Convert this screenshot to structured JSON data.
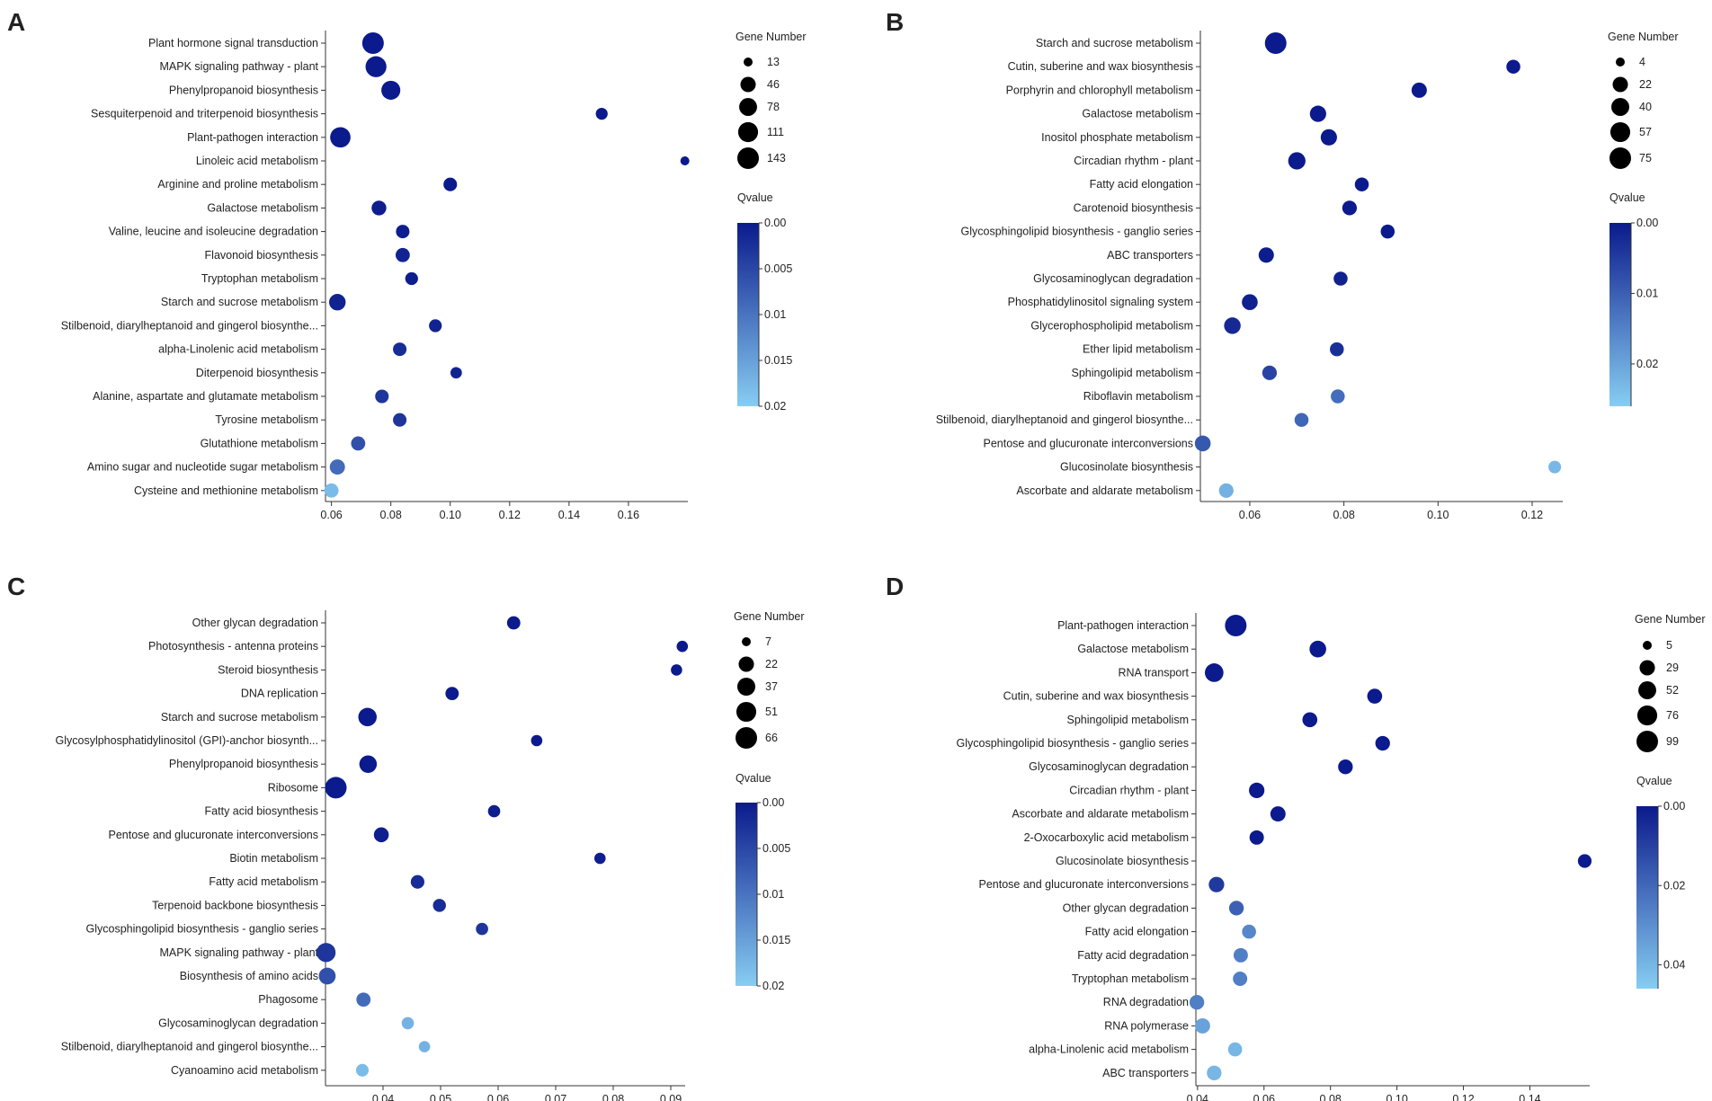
{
  "chart_data": [
    {
      "type": "scatter",
      "panel_label": "A",
      "categories": [
        "Plant hormone signal transduction",
        "MAPK signaling pathway - plant",
        "Phenylpropanoid biosynthesis",
        "Sesquiterpenoid and triterpenoid biosynthesis",
        "Plant-pathogen interaction",
        "Linoleic acid metabolism",
        "Arginine and proline metabolism",
        "Galactose metabolism",
        "Valine, leucine and isoleucine degradation",
        "Flavonoid biosynthesis",
        "Tryptophan metabolism",
        "Starch and sucrose metabolism",
        "Stilbenoid, diarylheptanoid and gingerol biosynthe...",
        "alpha-Linolenic acid metabolism",
        "Diterpenoid biosynthesis",
        "Alanine, aspartate and glutamate metabolism",
        "Tyrosine metabolism",
        "Glutathione metabolism",
        "Amino sugar and nucleotide sugar metabolism",
        "Cysteine and methionine metabolism"
      ],
      "x": [
        0.074,
        0.075,
        0.08,
        0.151,
        0.063,
        0.179,
        0.1,
        0.076,
        0.084,
        0.084,
        0.087,
        0.062,
        0.095,
        0.083,
        0.102,
        0.077,
        0.083,
        0.069,
        0.062,
        0.06
      ],
      "gene_number": [
        143,
        130,
        95,
        20,
        120,
        13,
        30,
        40,
        30,
        35,
        25,
        60,
        25,
        30,
        18,
        30,
        30,
        35,
        45,
        35
      ],
      "qvalue": [
        0.0,
        0.0,
        0.0,
        0.0,
        0.0,
        0.0,
        0.0,
        0.0005,
        0.0005,
        0.001,
        0.0005,
        0.001,
        0.001,
        0.002,
        0.001,
        0.003,
        0.003,
        0.006,
        0.009,
        0.018
      ],
      "xlim": [
        0.058,
        0.18
      ],
      "xticks": [
        0.06,
        0.08,
        0.1,
        0.12,
        0.14,
        0.16
      ],
      "xtick_labels": [
        "0.06",
        "0.08",
        "0.10",
        "0.12",
        "0.14",
        "0.16"
      ],
      "size_legend_title": "Gene Number",
      "size_legend_values": [
        13,
        46,
        78,
        111,
        143
      ],
      "size_legend_labels": [
        "13",
        "46",
        "78",
        "111",
        "143"
      ],
      "color_legend_title": "Qvalue",
      "color_range": [
        0,
        0.02
      ],
      "color_tick_values": [
        0,
        0.005,
        0.01,
        0.015,
        0.02
      ],
      "color_tick_labels": [
        "0.00",
        "0.005",
        "0.01",
        "0.015",
        "0.02"
      ]
    },
    {
      "type": "scatter",
      "panel_label": "B",
      "categories": [
        "Starch and sucrose metabolism",
        "Cutin, suberine and wax biosynthesis",
        "Porphyrin and chlorophyll metabolism",
        "Galactose metabolism",
        "Inositol phosphate metabolism",
        "Circadian rhythm - plant",
        "Fatty acid elongation",
        "Carotenoid biosynthesis",
        "Glycosphingolipid biosynthesis - ganglio series",
        "ABC transporters",
        "Glycosaminoglycan degradation",
        "Phosphatidylinositol signaling system",
        "Glycerophospholipid metabolism",
        "Ether lipid metabolism",
        "Sphingolipid metabolism",
        "Riboflavin metabolism",
        "Stilbenoid, diarylheptanoid and gingerol biosynthe...",
        "Pentose and glucuronate interconversions",
        "Glucosinolate biosynthesis",
        "Ascorbate and aldarate metabolism"
      ],
      "x": [
        0.0655,
        0.116,
        0.096,
        0.0745,
        0.0768,
        0.07,
        0.0838,
        0.0812,
        0.0893,
        0.0635,
        0.0793,
        0.06,
        0.0563,
        0.0785,
        0.0642,
        0.0787,
        0.071,
        0.05,
        0.1248,
        0.055
      ],
      "gene_number": [
        75,
        15,
        22,
        28,
        28,
        35,
        15,
        18,
        15,
        22,
        15,
        25,
        30,
        15,
        18,
        15,
        15,
        25,
        10,
        18
      ],
      "qvalue": [
        0.0,
        0.0,
        0.0,
        0.0,
        0.0,
        0.0,
        0.0,
        0.0,
        0.0,
        0.0005,
        0.001,
        0.0008,
        0.002,
        0.003,
        0.006,
        0.012,
        0.011,
        0.009,
        0.023,
        0.022
      ],
      "xlim": [
        0.0495,
        0.1265
      ],
      "xticks": [
        0.06,
        0.08,
        0.1,
        0.12
      ],
      "xtick_labels": [
        "0.06",
        "0.08",
        "0.10",
        "0.12"
      ],
      "size_legend_title": "Gene Number",
      "size_legend_values": [
        4,
        22,
        40,
        57,
        75
      ],
      "size_legend_labels": [
        "4",
        "22",
        "40",
        "57",
        "75"
      ],
      "color_legend_title": "Qvalue",
      "color_range": [
        0,
        0.026
      ],
      "color_tick_values": [
        0,
        0.01,
        0.02
      ],
      "color_tick_labels": [
        "0.00",
        "0.01",
        "0.02"
      ]
    },
    {
      "type": "scatter",
      "panel_label": "C",
      "categories": [
        "Other glycan degradation",
        "Photosynthesis - antenna proteins",
        "Steroid biosynthesis",
        "DNA replication",
        "Starch and sucrose metabolism",
        "Glycosylphosphatidylinositol (GPI)-anchor biosynth...",
        "Phenylpropanoid biosynthesis",
        "Ribosome",
        "Fatty acid biosynthesis",
        "Pentose and glucuronate interconversions",
        "Biotin metabolism",
        "Fatty acid metabolism",
        "Terpenoid backbone biosynthesis",
        "Glycosphingolipid biosynthesis - ganglio series",
        "MAPK signaling pathway - plant",
        "Biosynthesis of amino acids",
        "Phagosome",
        "Glycosaminoglycan degradation",
        "Stilbenoid, diarylheptanoid and gingerol biosynthe...",
        "Cyanoamino acid metabolism"
      ],
      "x": [
        0.0627,
        0.092,
        0.091,
        0.052,
        0.0373,
        0.0667,
        0.0374,
        0.0318,
        0.0593,
        0.0397,
        0.0777,
        0.046,
        0.0498,
        0.0572,
        0.0301,
        0.0303,
        0.0366,
        0.0443,
        0.0472,
        0.0364
      ],
      "gene_number": [
        14,
        9,
        9,
        14,
        40,
        9,
        34,
        66,
        11,
        20,
        9,
        15,
        13,
        11,
        45,
        30,
        17,
        11,
        9,
        12
      ],
      "qvalue": [
        0.0,
        0.0,
        0.0,
        0.0,
        0.0,
        0.0,
        0.0,
        0.0,
        0.0005,
        0.0005,
        0.0005,
        0.002,
        0.002,
        0.003,
        0.003,
        0.006,
        0.009,
        0.017,
        0.017,
        0.018
      ],
      "xlim": [
        0.03,
        0.0925
      ],
      "xticks": [
        0.04,
        0.05,
        0.06,
        0.07,
        0.08,
        0.09
      ],
      "xtick_labels": [
        "0.04",
        "0.05",
        "0.06",
        "0.07",
        "0.08",
        "0.09"
      ],
      "size_legend_title": "Gene Number",
      "size_legend_values": [
        7,
        22,
        37,
        51,
        66
      ],
      "size_legend_labels": [
        "7",
        "22",
        "37",
        "51",
        "66"
      ],
      "color_legend_title": "Qvalue",
      "color_range": [
        0,
        0.02
      ],
      "color_tick_values": [
        0,
        0.005,
        0.01,
        0.015,
        0.02
      ],
      "color_tick_labels": [
        "0.00",
        "0.005",
        "0.01",
        "0.015",
        "0.02"
      ]
    },
    {
      "type": "scatter",
      "panel_label": "D",
      "categories": [
        "Plant-pathogen interaction",
        "Galactose metabolism",
        "RNA transport",
        "Cutin, suberine and wax biosynthesis",
        "Sphingolipid metabolism",
        "Glycosphingolipid biosynthesis - ganglio series",
        "Glycosaminoglycan degradation",
        "Circadian rhythm - plant",
        "Ascorbate and aldarate metabolism",
        "2-Oxocarboxylic acid metabolism",
        "Glucosinolate biosynthesis",
        "Pentose and glucuronate interconversions",
        "Other glycan degradation",
        "Fatty acid elongation",
        "Fatty acid degradation",
        "Tryptophan metabolism",
        "RNA degradation",
        "RNA polymerase",
        "alpha-Linolenic acid metabolism",
        "ABC transporters"
      ],
      "x": [
        0.0515,
        0.0762,
        0.045,
        0.0933,
        0.0738,
        0.0957,
        0.0845,
        0.0578,
        0.0642,
        0.0578,
        0.1565,
        0.0457,
        0.0517,
        0.0555,
        0.053,
        0.0528,
        0.0398,
        0.0415,
        0.0513,
        0.045
      ],
      "gene_number": [
        99,
        40,
        60,
        26,
        26,
        24,
        24,
        30,
        28,
        22,
        18,
        30,
        24,
        20,
        22,
        22,
        24,
        28,
        20,
        24
      ],
      "qvalue": [
        0.0,
        0.0,
        0.0,
        0.0,
        0.0,
        0.0,
        0.0,
        0.0,
        0.0,
        0.0,
        0.0,
        0.008,
        0.018,
        0.028,
        0.026,
        0.026,
        0.026,
        0.035,
        0.04,
        0.04
      ],
      "xlim": [
        0.0395,
        0.158
      ],
      "xticks": [
        0.04,
        0.06,
        0.08,
        0.1,
        0.12,
        0.14
      ],
      "xtick_labels": [
        "0.04",
        "0.06",
        "0.08",
        "0.10",
        "0.12",
        "0.14"
      ],
      "size_legend_title": "Gene Number",
      "size_legend_values": [
        5,
        29,
        52,
        76,
        99
      ],
      "size_legend_labels": [
        "5",
        "29",
        "52",
        "76",
        "99"
      ],
      "color_legend_title": "Qvalue",
      "color_range": [
        0,
        0.046
      ],
      "color_tick_values": [
        0,
        0.02,
        0.04
      ],
      "color_tick_labels": [
        "0.00",
        "0.02",
        "0.04"
      ]
    }
  ],
  "colors": {
    "qvalue_low": "#0b1a8c",
    "qvalue_high": "#87cdf2",
    "axis": "#333333",
    "legend_dot": "#000000"
  }
}
